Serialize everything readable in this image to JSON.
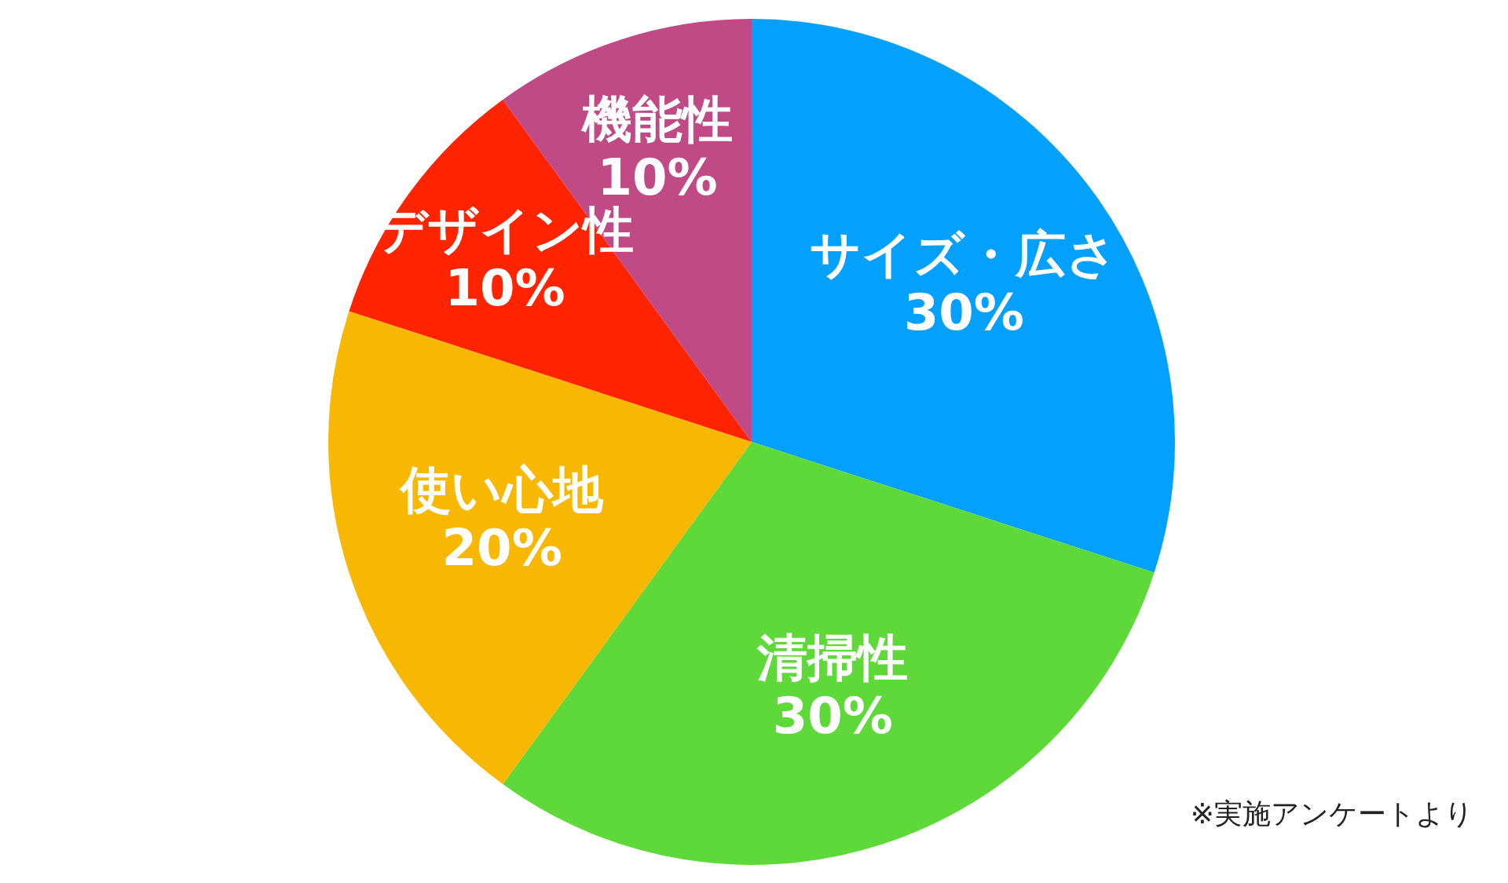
{
  "chart_data": {
    "type": "pie",
    "categories": [
      "サイズ・広さ",
      "清掃性",
      "使い心地",
      "デザイン性",
      "機能性"
    ],
    "values": [
      30,
      30,
      20,
      10,
      10
    ],
    "value_labels": [
      "30%",
      "30%",
      "20%",
      "10%",
      "10%"
    ],
    "colors": [
      "#04a0fe",
      "#5fd83a",
      "#f8b700",
      "#fe2400",
      "#bf4a86"
    ],
    "annotations": [
      "※実施アンケートより"
    ]
  }
}
